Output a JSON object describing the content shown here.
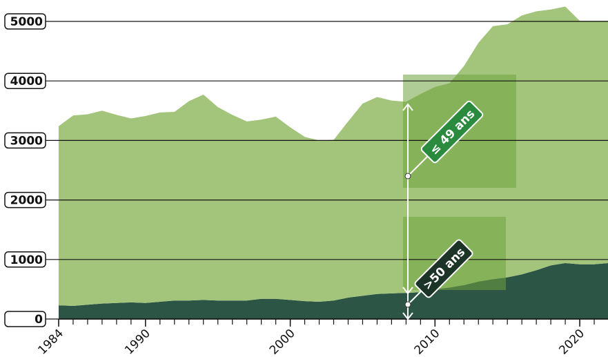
{
  "chart_data": {
    "type": "stacked-area",
    "x": [
      1984,
      1985,
      1986,
      1987,
      1988,
      1989,
      1990,
      1991,
      1992,
      1993,
      1994,
      1995,
      1996,
      1997,
      1998,
      1999,
      2000,
      2001,
      2002,
      2003,
      2004,
      2005,
      2006,
      2007,
      2008,
      2009,
      2010,
      2011,
      2012,
      2013,
      2014,
      2015,
      2016,
      2017,
      2018,
      2019,
      2020,
      2021,
      2022
    ],
    "series": [
      {
        "name": ">50 ans",
        "color": "#2d5546",
        "values": [
          230,
          220,
          240,
          260,
          270,
          280,
          270,
          290,
          310,
          310,
          320,
          310,
          310,
          310,
          340,
          340,
          320,
          300,
          290,
          310,
          360,
          390,
          420,
          430,
          440,
          450,
          500,
          530,
          570,
          630,
          670,
          700,
          750,
          820,
          900,
          940,
          920,
          920,
          940
        ]
      },
      {
        "name": "≤ 49 ans",
        "color": "#a3c57b",
        "values": [
          3010,
          3200,
          3200,
          3240,
          3160,
          3090,
          3140,
          3180,
          3170,
          3350,
          3450,
          3250,
          3120,
          3010,
          3010,
          3060,
          2900,
          2760,
          2710,
          2700,
          2960,
          3230,
          3310,
          3240,
          3210,
          3330,
          3400,
          3430,
          3680,
          4010,
          4250,
          4250,
          4350,
          4350,
          4300,
          4310,
          4090,
          4090,
          4070
        ]
      }
    ],
    "xlim": [
      1984,
      2022
    ],
    "xticks": [
      1984,
      1990,
      2000,
      2010,
      2020
    ],
    "ylim": [
      0,
      5000
    ],
    "yticks": [
      0,
      1000,
      2000,
      3000,
      4000,
      5000
    ],
    "grid": true
  }
}
